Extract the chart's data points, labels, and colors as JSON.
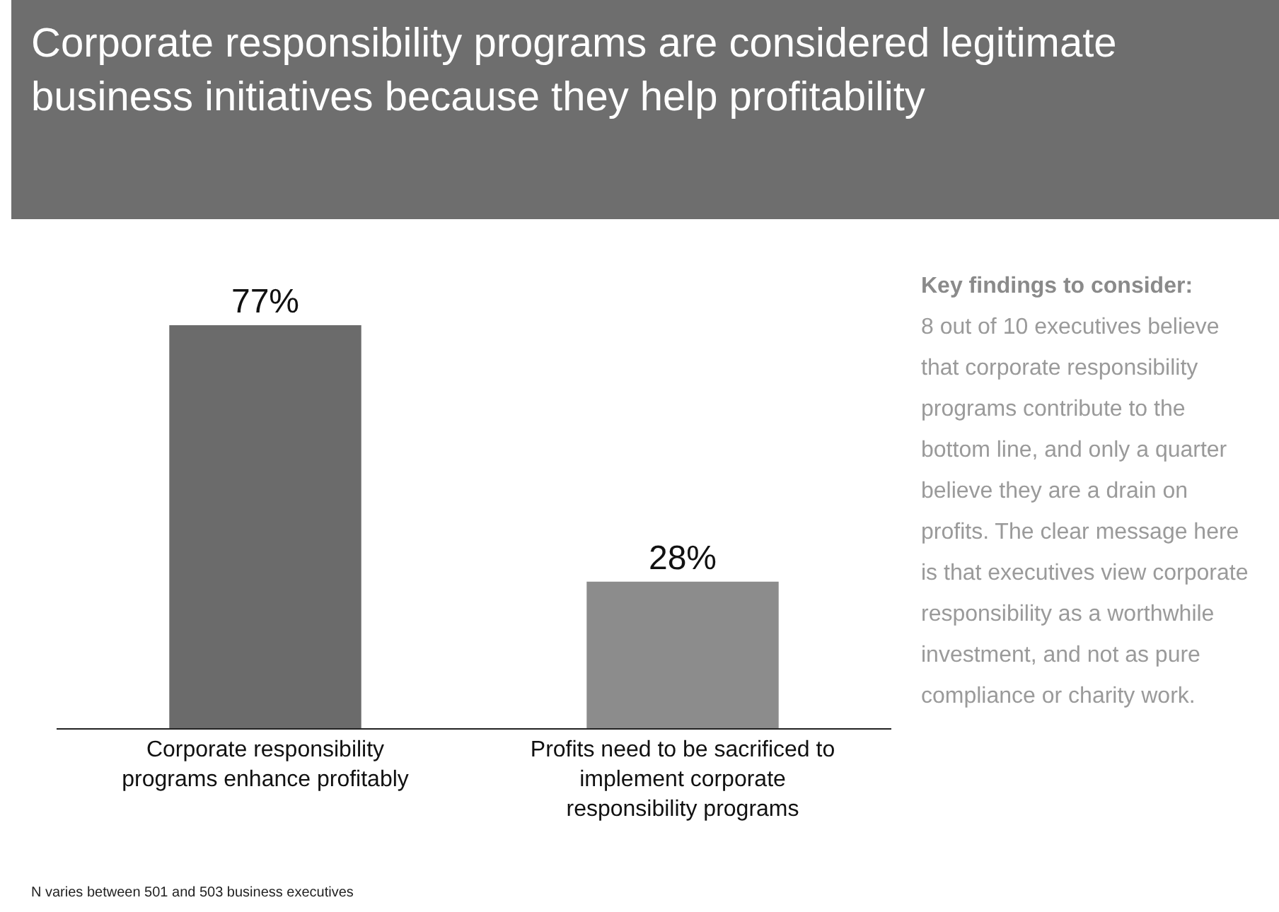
{
  "chart_data": {
    "type": "bar",
    "title": "Corporate responsibility programs are considered legitimate business initiatives because they help profitability",
    "categories": [
      "Corporate responsibility programs enhance profitably",
      "Profits need to be sacrificed to implement corporate responsibility programs"
    ],
    "values": [
      77,
      28
    ],
    "colors": [
      "#6b6b6b",
      "#8c8c8c"
    ],
    "tick_labels": "x",
    "data_labels": true,
    "value_labels": [
      "77%",
      "28%"
    ],
    "grid": false,
    "legend": false,
    "annotations": [
      "Key findings to consider:",
      "8 out of 10 executives believe that corporate responsibility programs contribute to the bottom line, and only a quarter believe they are a drain on profits. The clear message here is that executives view corporate responsibility as a worthwhile investment, and not as pure compliance or charity work.",
      "N varies between 501 and 503 business executives"
    ]
  }
}
